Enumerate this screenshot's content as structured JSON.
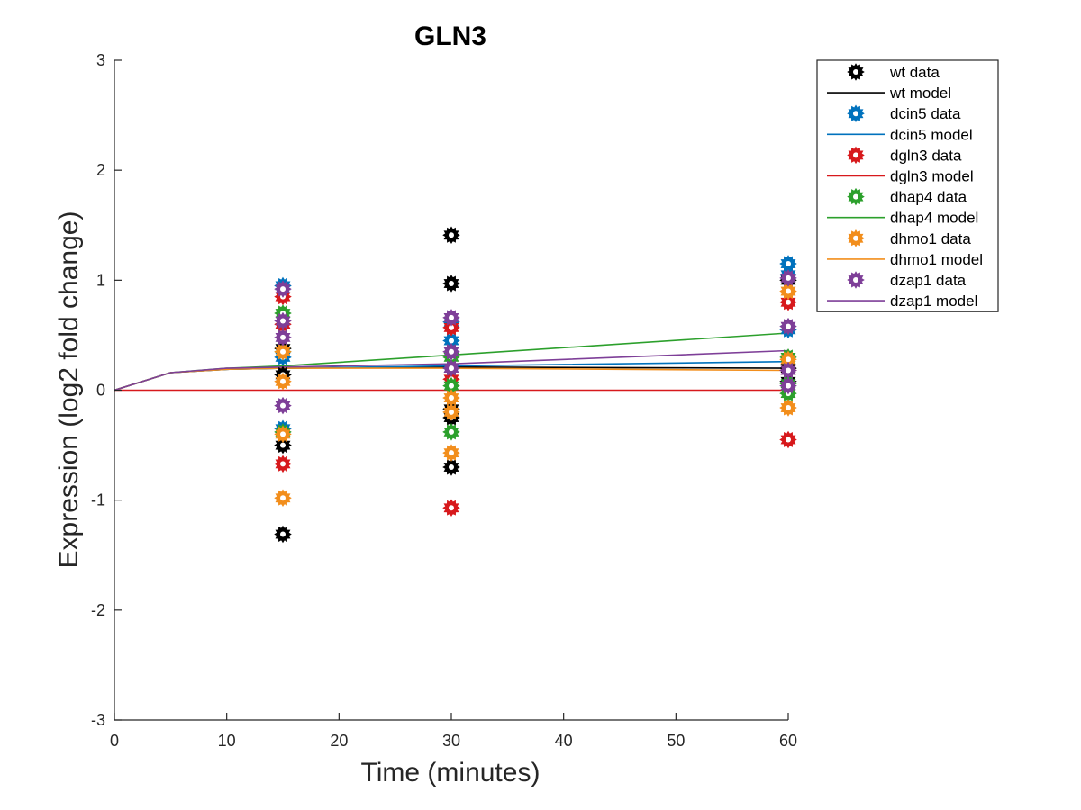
{
  "chart_data": {
    "type": "scatter",
    "title": "GLN3",
    "xlabel": "Time (minutes)",
    "ylabel": "Expression (log2 fold change)",
    "xlim": [
      0,
      60
    ],
    "ylim": [
      -3,
      3
    ],
    "xticks": [
      0,
      10,
      20,
      30,
      40,
      50,
      60
    ],
    "yticks": [
      -3,
      -2,
      -1,
      0,
      1,
      2,
      3
    ],
    "grid": false,
    "legend_position": "top-right (outside plot)",
    "series": [
      {
        "strain": "wt",
        "color": "#000000",
        "data_label": "wt data",
        "model_label": "wt model",
        "data_points": [
          [
            15,
            0.38
          ],
          [
            15,
            0.14
          ],
          [
            15,
            -0.5
          ],
          [
            15,
            -1.31
          ],
          [
            30,
            1.41
          ],
          [
            30,
            0.97
          ],
          [
            30,
            -0.25
          ],
          [
            30,
            -0.17
          ],
          [
            30,
            -0.7
          ],
          [
            60,
            1.0
          ],
          [
            60,
            0.2
          ],
          [
            60,
            0.08
          ]
        ],
        "model_points": [
          [
            0,
            0
          ],
          [
            5,
            0.16
          ],
          [
            10,
            0.19
          ],
          [
            15,
            0.2
          ],
          [
            30,
            0.21
          ],
          [
            60,
            0.2
          ]
        ]
      },
      {
        "strain": "dcin5",
        "color": "#0072BD",
        "data_label": "dcin5 data",
        "model_label": "dcin5 model",
        "data_points": [
          [
            15,
            0.95
          ],
          [
            15,
            0.3
          ],
          [
            15,
            -0.35
          ],
          [
            30,
            0.62
          ],
          [
            30,
            0.45
          ],
          [
            30,
            0.2
          ],
          [
            60,
            1.15
          ],
          [
            60,
            1.05
          ],
          [
            60,
            0.55
          ]
        ],
        "model_points": [
          [
            0,
            0
          ],
          [
            5,
            0.16
          ],
          [
            10,
            0.19
          ],
          [
            15,
            0.2
          ],
          [
            30,
            0.22
          ],
          [
            60,
            0.26
          ]
        ]
      },
      {
        "strain": "dgln3",
        "color": "#D7191C",
        "data_label": "dgln3 data",
        "model_label": "dgln3 model",
        "data_points": [
          [
            15,
            0.85
          ],
          [
            15,
            0.6
          ],
          [
            15,
            -0.67
          ],
          [
            30,
            0.57
          ],
          [
            30,
            0.1
          ],
          [
            30,
            -1.07
          ],
          [
            60,
            0.8
          ],
          [
            60,
            0.18
          ],
          [
            60,
            -0.45
          ]
        ],
        "model_points": [
          [
            0,
            0
          ],
          [
            5,
            0
          ],
          [
            10,
            0
          ],
          [
            15,
            0
          ],
          [
            30,
            0
          ],
          [
            60,
            0
          ]
        ]
      },
      {
        "strain": "dhap4",
        "color": "#2CA02C",
        "data_label": "dhap4 data",
        "model_label": "dhap4 model",
        "data_points": [
          [
            15,
            0.7
          ],
          [
            15,
            0.35
          ],
          [
            15,
            -0.38
          ],
          [
            30,
            0.3
          ],
          [
            30,
            0.04
          ],
          [
            30,
            -0.38
          ],
          [
            60,
            0.3
          ],
          [
            60,
            0.06
          ],
          [
            60,
            -0.03
          ]
        ],
        "model_points": [
          [
            0,
            0
          ],
          [
            5,
            0.16
          ],
          [
            10,
            0.2
          ],
          [
            15,
            0.22
          ],
          [
            30,
            0.32
          ],
          [
            60,
            0.52
          ]
        ]
      },
      {
        "strain": "dhmo1",
        "color": "#F28E1C",
        "data_label": "dhmo1 data",
        "model_label": "dhmo1 model",
        "data_points": [
          [
            15,
            0.35
          ],
          [
            15,
            0.08
          ],
          [
            15,
            -0.4
          ],
          [
            15,
            -0.98
          ],
          [
            30,
            -0.07
          ],
          [
            30,
            -0.2
          ],
          [
            30,
            -0.57
          ],
          [
            60,
            0.9
          ],
          [
            60,
            0.28
          ],
          [
            60,
            -0.16
          ]
        ],
        "model_points": [
          [
            0,
            0
          ],
          [
            5,
            0.16
          ],
          [
            10,
            0.19
          ],
          [
            15,
            0.2
          ],
          [
            30,
            0.2
          ],
          [
            60,
            0.18
          ]
        ]
      },
      {
        "strain": "dzap1",
        "color": "#7E3F98",
        "data_label": "dzap1 data",
        "model_label": "dzap1 model",
        "data_points": [
          [
            15,
            0.92
          ],
          [
            15,
            0.63
          ],
          [
            15,
            0.48
          ],
          [
            15,
            -0.14
          ],
          [
            30,
            0.66
          ],
          [
            30,
            0.35
          ],
          [
            30,
            0.2
          ],
          [
            60,
            1.02
          ],
          [
            60,
            0.58
          ],
          [
            60,
            0.18
          ],
          [
            60,
            0.04
          ]
        ],
        "model_points": [
          [
            0,
            0
          ],
          [
            5,
            0.16
          ],
          [
            10,
            0.2
          ],
          [
            15,
            0.21
          ],
          [
            30,
            0.24
          ],
          [
            60,
            0.36
          ]
        ]
      }
    ]
  }
}
